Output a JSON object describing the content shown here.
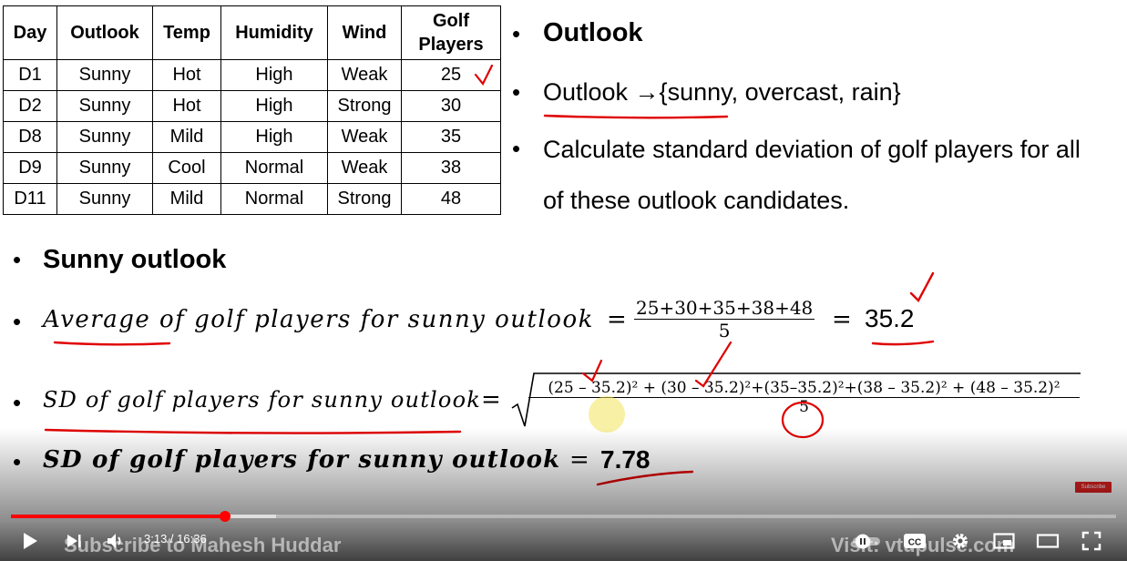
{
  "table": {
    "headers": [
      "Day",
      "Outlook",
      "Temp",
      "Humidity",
      "Wind",
      "Golf Players"
    ],
    "rows": [
      [
        "D1",
        "Sunny",
        "Hot",
        "High",
        "Weak",
        "25"
      ],
      [
        "D2",
        "Sunny",
        "Hot",
        "High",
        "Strong",
        "30"
      ],
      [
        "D8",
        "Sunny",
        "Mild",
        "High",
        "Weak",
        "35"
      ],
      [
        "D9",
        "Sunny",
        "Cool",
        "Normal",
        "Weak",
        "38"
      ],
      [
        "D11",
        "Sunny",
        "Mild",
        "Normal",
        "Strong",
        "48"
      ]
    ]
  },
  "right_bullets": {
    "title": "Outlook",
    "outlook_def": "Outlook →{sunny, overcast, rain}",
    "calc_line1": "Calculate standard deviation of golf players for all",
    "calc_line2": "of these outlook candidates."
  },
  "sunny": {
    "heading": "Sunny outlook",
    "avg_label": "Average of golf players for sunny outlook",
    "avg_numerator": "25+30+35+38+48",
    "avg_denominator": "5",
    "avg_result": "35.2",
    "sd_label": "SD of golf players for sunny outlook",
    "sd_numerator": "(25 – 35.2)² + (30 – 35.2)²+(35–35.2)²+(38 – 35.2)² + (48 – 35.2)²",
    "sd_denominator": "5",
    "sd_final_label": "SD of golf players for sunny outlook",
    "sd_final_value": "7.78",
    "equals": "="
  },
  "player": {
    "time": "3:13 / 16:36",
    "progress_fraction": 0.194,
    "buffer_fraction": 0.24,
    "watermark_left": "Subscribe to Mahesh Huddar",
    "watermark_right": "Visit: vtupulse.com",
    "subscribe_badge": "Subscribe",
    "cc_label": "CC",
    "icons": [
      "play-icon",
      "next-icon",
      "volume-icon",
      "autoplay-toggle",
      "cc-icon",
      "settings-icon",
      "miniplayer-icon",
      "theater-icon",
      "fullscreen-icon"
    ],
    "accent_color": "#ff0000"
  }
}
